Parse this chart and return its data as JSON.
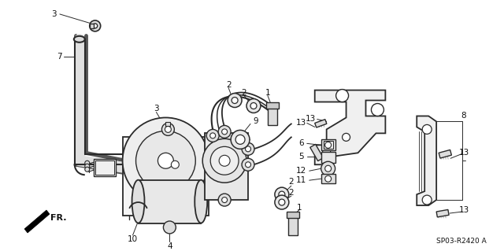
{
  "background_color": "#ffffff",
  "diagram_code": "SP03-R2420 A",
  "fig_width": 6.4,
  "fig_height": 3.19,
  "dpi": 100,
  "line_color": "#2a2a2a",
  "label_color": "#111111",
  "pipe_lw": 3.5,
  "body_lw": 1.3,
  "thin_lw": 0.8,
  "label_fs": 7.5,
  "code_fs": 6.5
}
